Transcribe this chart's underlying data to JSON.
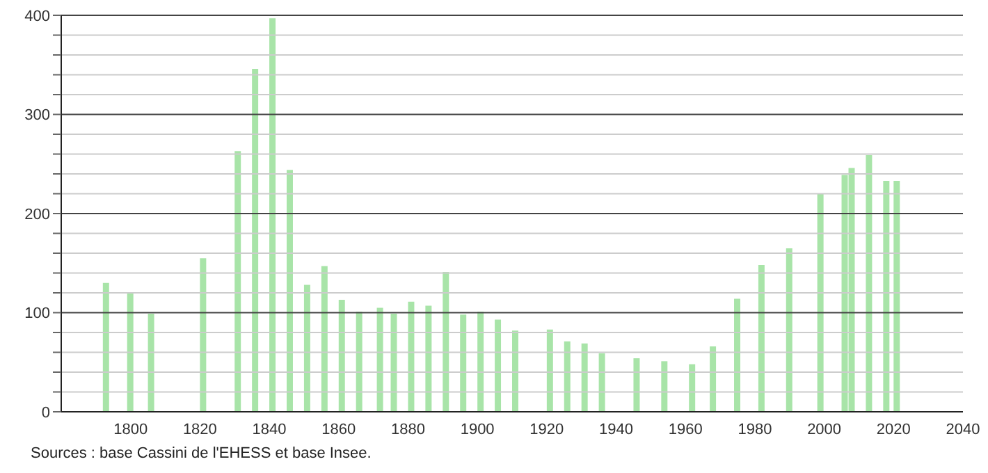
{
  "chart_data": {
    "type": "bar",
    "x": [
      1793,
      1800,
      1806,
      1821,
      1831,
      1836,
      1841,
      1846,
      1851,
      1856,
      1861,
      1866,
      1872,
      1876,
      1881,
      1886,
      1891,
      1896,
      1901,
      1906,
      1911,
      1921,
      1926,
      1931,
      1936,
      1946,
      1954,
      1962,
      1968,
      1975,
      1982,
      1990,
      1999,
      2006,
      2008,
      2013,
      2018,
      2021
    ],
    "values": [
      130,
      120,
      99,
      155,
      263,
      346,
      397,
      244,
      128,
      147,
      113,
      101,
      105,
      99,
      111,
      107,
      141,
      98,
      101,
      93,
      82,
      83,
      71,
      69,
      59,
      54,
      51,
      48,
      66,
      114,
      148,
      165,
      220,
      239,
      246,
      259,
      233,
      233
    ],
    "color": "#a8e4a8",
    "xlim": [
      1780,
      2040
    ],
    "xticks": [
      1800,
      1820,
      1840,
      1860,
      1880,
      1900,
      1920,
      1940,
      1960,
      1980,
      2000,
      2020,
      2040
    ],
    "ylim": [
      0,
      400
    ],
    "yticks": [
      0,
      {
        "value": 20,
        "label": null
      },
      {
        "value": 40,
        "label": null
      },
      {
        "value": 60,
        "label": null
      },
      {
        "value": 80,
        "label": null
      },
      100,
      {
        "value": 120,
        "label": null
      },
      {
        "value": 140,
        "label": null
      },
      {
        "value": 160,
        "label": null
      },
      {
        "value": 180,
        "label": null
      },
      200,
      {
        "value": 220,
        "label": null
      },
      {
        "value": 240,
        "label": null
      },
      {
        "value": 260,
        "label": null
      },
      {
        "value": 280,
        "label": null
      },
      300,
      {
        "value": 320,
        "label": null
      },
      {
        "value": 340,
        "label": null
      },
      {
        "value": 360,
        "label": null
      },
      {
        "value": 380,
        "label": null
      },
      400
    ],
    "grid": "y",
    "annotations": [
      "Sources : base Cassini de l'EHESS et base Insee."
    ]
  }
}
